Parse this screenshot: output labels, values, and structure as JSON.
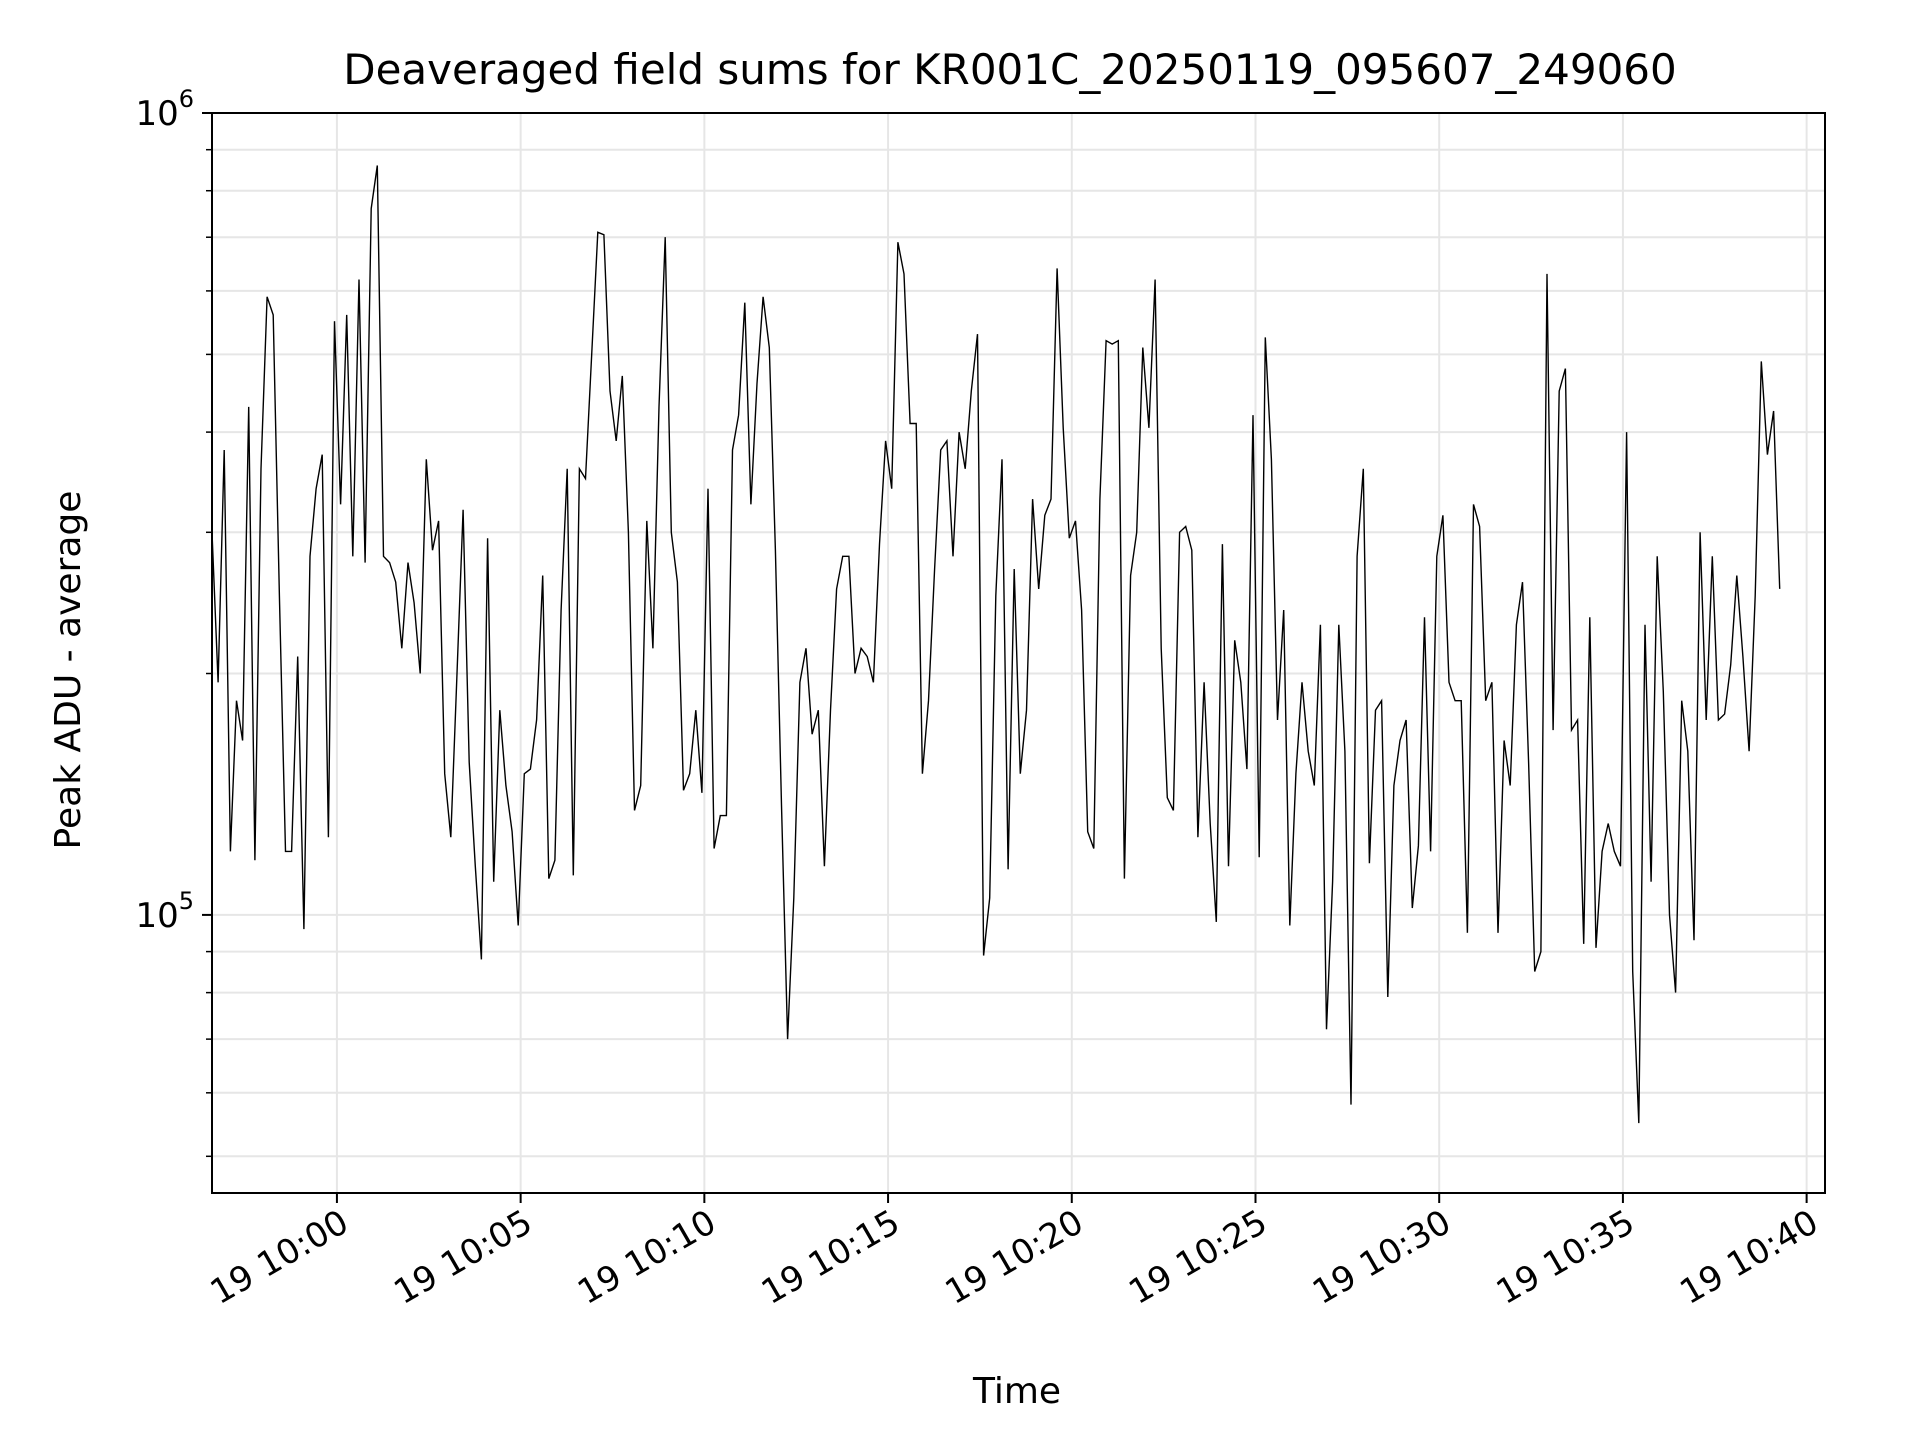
{
  "chart_data": {
    "type": "line",
    "title": "Deaveraged field sums for KR001C_20250119_095607_249060",
    "xlabel": "Time",
    "ylabel": "Peak ADU - average",
    "x_scale": "time",
    "y_scale": "log",
    "grid": true,
    "xlim": [
      "2025-01-19 09:56:36",
      "2025-01-19 10:40:30"
    ],
    "ylim": [
      45000,
      1000000
    ],
    "x_ticks": [
      "2025-01-19 10:00",
      "2025-01-19 10:05",
      "2025-01-19 10:10",
      "2025-01-19 10:15",
      "2025-01-19 10:20",
      "2025-01-19 10:25",
      "2025-01-19 10:30",
      "2025-01-19 10:35",
      "2025-01-19 10:40"
    ],
    "x_tick_labels": [
      "19 10:00",
      "19 10:05",
      "19 10:10",
      "19 10:15",
      "19 10:20",
      "19 10:25",
      "19 10:30",
      "19 10:35",
      "19 10:40"
    ],
    "y_ticks": [
      100000,
      1000000
    ],
    "y_tick_labels": [
      {
        "base": "10",
        "exp": "5"
      },
      {
        "base": "10",
        "exp": "6"
      }
    ],
    "line_color": "#000000",
    "grid_color": "#e6e6e6",
    "series": [
      {
        "x_start": "2025-01-19 09:56:36",
        "x_step_seconds": 10,
        "values": [
          300000,
          195000,
          380000,
          120000,
          185000,
          165000,
          430000,
          117000,
          360000,
          590000,
          560000,
          250000,
          120000,
          120000,
          210000,
          96000,
          280000,
          340000,
          375000,
          125000,
          550000,
          325000,
          560000,
          280000,
          620000,
          275000,
          760000,
          860000,
          280000,
          275000,
          260000,
          215000,
          275000,
          245000,
          200000,
          370000,
          285000,
          310000,
          150000,
          125000,
          200000,
          320000,
          155000,
          115000,
          88000,
          295000,
          110000,
          180000,
          145000,
          127000,
          97000,
          150000,
          152000,
          175000,
          265000,
          111000,
          117000,
          240000,
          360000,
          112000,
          360000,
          350000,
          500000,
          710000,
          705000,
          450000,
          390000,
          470000,
          300000,
          135000,
          145000,
          310000,
          215000,
          430000,
          700000,
          300000,
          260000,
          143000,
          150000,
          180000,
          142000,
          340000,
          121000,
          133000,
          133000,
          380000,
          420000,
          580000,
          325000,
          460000,
          590000,
          510000,
          285000,
          137000,
          70000,
          105000,
          195000,
          215000,
          168000,
          180000,
          115000,
          180000,
          255000,
          280000,
          280000,
          200000,
          215000,
          210000,
          195000,
          290000,
          390000,
          340000,
          690000,
          630000,
          410000,
          410000,
          150000,
          185000,
          270000,
          380000,
          390000,
          280000,
          400000,
          360000,
          450000,
          530000,
          89000,
          105000,
          250000,
          370000,
          114000,
          270000,
          150000,
          180000,
          330000,
          255000,
          315000,
          330000,
          640000,
          405000,
          295000,
          310000,
          240000,
          127000,
          121000,
          330000,
          520000,
          515000,
          520000,
          111000,
          265000,
          300000,
          510000,
          405000,
          620000,
          215000,
          140000,
          135000,
          300000,
          305000,
          285000,
          125000,
          195000,
          130000,
          98000,
          290000,
          115000,
          220000,
          195000,
          152000,
          420000,
          118000,
          525000,
          370000,
          175000,
          240000,
          97000,
          150000,
          195000,
          160000,
          145000,
          230000,
          72000,
          110000,
          230000,
          160000,
          58000,
          280000,
          360000,
          116000,
          180000,
          185000,
          79000,
          145000,
          165000,
          175000,
          102000,
          122000,
          235000,
          120000,
          280000,
          315000,
          195000,
          185000,
          185000,
          95000,
          325000,
          305000,
          185000,
          195000,
          95000,
          165000,
          145000,
          230000,
          260000,
          155000,
          85000,
          90000,
          630000,
          170000,
          450000,
          480000,
          170000,
          175000,
          92000,
          235000,
          91000,
          120000,
          130000,
          120000,
          115000,
          400000,
          85000,
          55000,
          230000,
          110000,
          280000,
          190000,
          100000,
          80000,
          185000,
          160000,
          93000,
          300000,
          175000,
          280000,
          175000,
          178000,
          205000,
          265000,
          210000,
          160000,
          250000,
          490000,
          375000,
          425000,
          255000
        ]
      }
    ]
  }
}
